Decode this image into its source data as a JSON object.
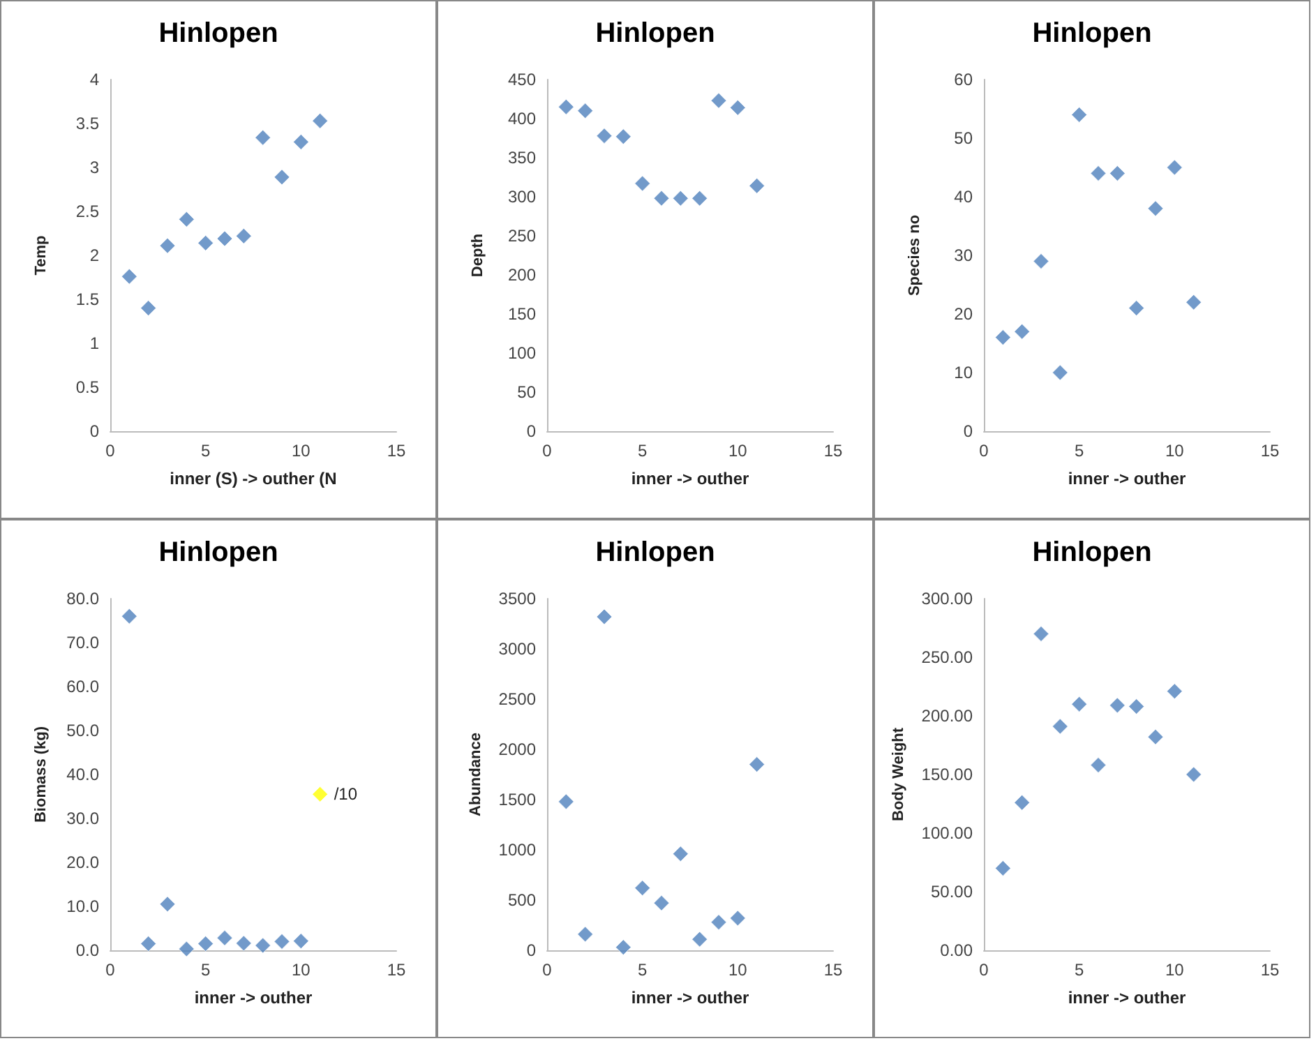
{
  "chart_data": [
    {
      "type": "scatter",
      "title": "Hinlopen",
      "xlabel": "inner (S) -> outher (N",
      "ylabel": "Temp",
      "x": [
        1,
        2,
        3,
        4,
        5,
        6,
        7,
        8,
        9,
        10,
        11
      ],
      "values": [
        1.76,
        1.4,
        2.11,
        2.41,
        2.14,
        2.19,
        2.22,
        3.34,
        2.89,
        3.29,
        3.53
      ],
      "color": "#4f81bd",
      "marker": "diamond",
      "xlim": [
        0,
        15
      ],
      "xticks": [
        0,
        5,
        10,
        15
      ],
      "ylim": [
        0,
        4
      ],
      "yticks": [
        0,
        0.5,
        1,
        1.5,
        2,
        2.5,
        3,
        3.5,
        4
      ]
    },
    {
      "type": "scatter",
      "title": "Hinlopen",
      "xlabel": "inner -> outher",
      "ylabel": "Depth",
      "x": [
        1,
        2,
        3,
        4,
        5,
        6,
        7,
        8,
        9,
        10,
        11
      ],
      "values": [
        415,
        410,
        378,
        377,
        317,
        298,
        298,
        298,
        423,
        414,
        314
      ],
      "color": "#4f81bd",
      "marker": "diamond",
      "xlim": [
        0,
        15
      ],
      "xticks": [
        0,
        5,
        10,
        15
      ],
      "ylim": [
        0,
        450
      ],
      "yticks": [
        0,
        50,
        100,
        150,
        200,
        250,
        300,
        350,
        400,
        450
      ]
    },
    {
      "type": "scatter",
      "title": "Hinlopen",
      "xlabel": "inner -> outher",
      "ylabel": "Species no",
      "x": [
        1,
        2,
        3,
        4,
        5,
        6,
        7,
        8,
        9,
        10,
        11
      ],
      "values": [
        16,
        17,
        29,
        10,
        54,
        44,
        44,
        21,
        38,
        45,
        22
      ],
      "color": "#4f81bd",
      "marker": "diamond",
      "xlim": [
        0,
        15
      ],
      "xticks": [
        0,
        5,
        10,
        15
      ],
      "ylim": [
        0,
        60
      ],
      "yticks": [
        0,
        10,
        20,
        30,
        40,
        50,
        60
      ]
    },
    {
      "type": "scatter",
      "title": "Hinlopen",
      "xlabel": "inner -> outher",
      "ylabel": "Biomass (kg)",
      "series": [
        {
          "color": "#4f81bd",
          "x": [
            1,
            2,
            3,
            4,
            5,
            6,
            7,
            8,
            9,
            10
          ],
          "values": [
            76,
            1.5,
            10.5,
            0.3,
            1.5,
            2.8,
            1.6,
            1.1,
            2,
            2.1
          ]
        },
        {
          "color": "#ffff00",
          "x": [
            11
          ],
          "values": [
            35.5
          ]
        }
      ],
      "annotations": [
        {
          "text": "/10",
          "x": 11,
          "y": 35.5
        }
      ],
      "marker": "diamond",
      "xlim": [
        0,
        15
      ],
      "xticks": [
        0,
        5,
        10,
        15
      ],
      "ylim": [
        0,
        80
      ],
      "yticks": [
        {
          "value": 0,
          "label": "0.0"
        },
        {
          "value": 10,
          "label": "10.0"
        },
        {
          "value": 20,
          "label": "20.0"
        },
        {
          "value": 30,
          "label": "30.0"
        },
        {
          "value": 40,
          "label": "40.0"
        },
        {
          "value": 50,
          "label": "50.0"
        },
        {
          "value": 60,
          "label": "60.0"
        },
        {
          "value": 70,
          "label": "70.0"
        },
        {
          "value": 80,
          "label": "80.0"
        }
      ]
    },
    {
      "type": "scatter",
      "title": "Hinlopen",
      "xlabel": "inner -> outher",
      "ylabel": "Abundance",
      "x": [
        1,
        2,
        3,
        4,
        5,
        6,
        7,
        8,
        9,
        10,
        11
      ],
      "values": [
        1480,
        160,
        3320,
        30,
        620,
        470,
        960,
        110,
        280,
        320,
        1850
      ],
      "color": "#4f81bd",
      "marker": "diamond",
      "xlim": [
        0,
        15
      ],
      "xticks": [
        0,
        5,
        10,
        15
      ],
      "ylim": [
        0,
        3500
      ],
      "yticks": [
        0,
        500,
        1000,
        1500,
        2000,
        2500,
        3000,
        3500
      ]
    },
    {
      "type": "scatter",
      "title": "Hinlopen",
      "xlabel": "inner -> outher",
      "ylabel": "Body Weight",
      "x": [
        1,
        2,
        3,
        4,
        5,
        6,
        7,
        8,
        9,
        10,
        11
      ],
      "values": [
        70,
        126,
        270,
        191,
        210,
        158,
        209,
        208,
        182,
        221,
        150
      ],
      "color": "#4f81bd",
      "marker": "diamond",
      "xlim": [
        0,
        15
      ],
      "xticks": [
        0,
        5,
        10,
        15
      ],
      "ylim": [
        0,
        300
      ],
      "yticks": [
        {
          "value": 0,
          "label": "0.00"
        },
        {
          "value": 50,
          "label": "50.00"
        },
        {
          "value": 100,
          "label": "100.00"
        },
        {
          "value": 150,
          "label": "150.00"
        },
        {
          "value": 200,
          "label": "200.00"
        },
        {
          "value": 250,
          "label": "250.00"
        },
        {
          "value": 300,
          "label": "300.00"
        }
      ]
    }
  ]
}
